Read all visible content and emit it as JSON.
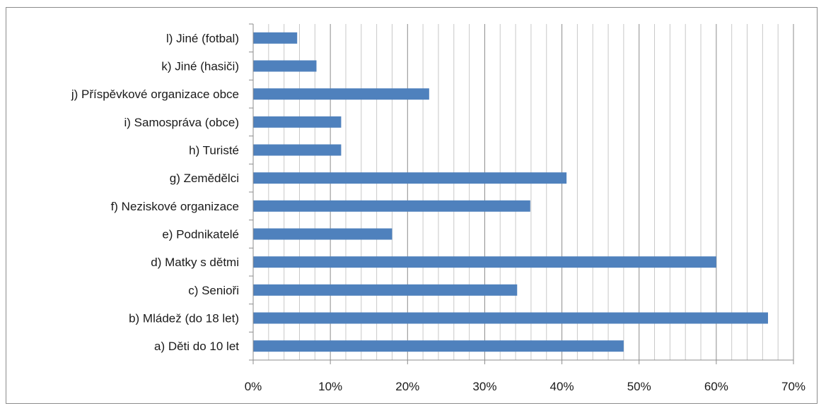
{
  "chart_data": {
    "type": "bar",
    "orientation": "horizontal",
    "categories": [
      "a) Děti do 10 let",
      "b) Mládež (do 18 let)",
      "c) Senioři",
      "d) Matky s dětmi",
      "e) Podnikatelé",
      "f) Neziskové organizace",
      "g) Zemědělci",
      "h) Turisté",
      "i) Samospráva (obce)",
      "j) Příspěvkové organizace obce",
      "k) Jiné (hasiči)",
      "l) Jiné (fotbal)"
    ],
    "values": [
      0.48,
      0.667,
      0.342,
      0.6,
      0.18,
      0.359,
      0.406,
      0.114,
      0.114,
      0.228,
      0.082,
      0.057
    ],
    "xlim": [
      0,
      0.7
    ],
    "xticks": [
      "0%",
      "10%",
      "20%",
      "30%",
      "40%",
      "50%",
      "60%",
      "70%"
    ],
    "grid": "vertical major and minor",
    "bar_color": "#4f81bd",
    "title": "",
    "xlabel": "",
    "ylabel": ""
  }
}
